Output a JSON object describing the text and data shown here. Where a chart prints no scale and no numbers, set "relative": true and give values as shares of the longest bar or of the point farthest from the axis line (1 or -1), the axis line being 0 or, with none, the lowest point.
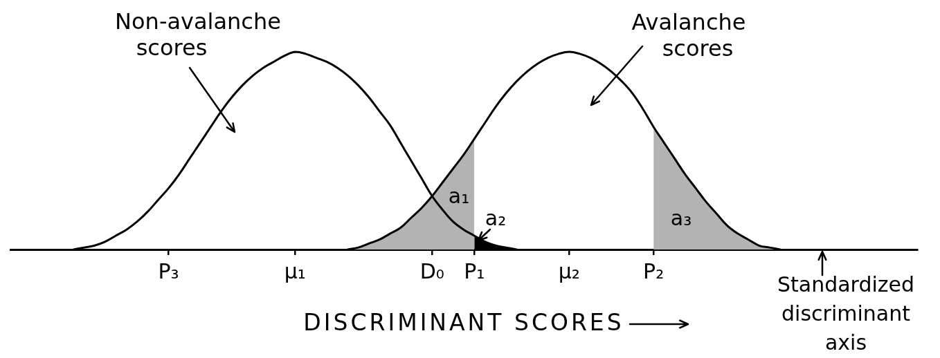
{
  "chart_data": {
    "type": "line",
    "relative": true,
    "xlabel": "DISCRIMINANT SCORES",
    "categories": [
      null,
      null,
      null,
      null,
      null,
      null,
      null,
      null,
      null,
      null,
      null,
      null,
      null,
      null,
      null,
      "P₃",
      null,
      null,
      null,
      null,
      null,
      null,
      null,
      null,
      null,
      null,
      null,
      "μ₁",
      null,
      null,
      null,
      null,
      null,
      null,
      null,
      null,
      null,
      null,
      null,
      null,
      "D₀",
      null,
      null,
      null,
      "P₁",
      null,
      null,
      null,
      null,
      null,
      null,
      null,
      null,
      "μ₂",
      null,
      null,
      null,
      null,
      null,
      null,
      null,
      "P₂",
      null,
      null,
      null,
      null,
      null,
      null,
      null,
      null,
      null,
      null,
      null,
      null,
      null,
      null,
      null,
      null,
      null,
      null,
      null,
      null,
      null,
      null,
      null,
      null,
      null
    ],
    "series": [
      {
        "name": "Non-avalanche scores",
        "color": "#000000",
        "values": [
          null,
          null,
          null,
          null,
          null,
          null,
          0,
          0.01,
          0.02,
          0.04,
          0.07,
          0.1,
          0.14,
          0.19,
          0.25,
          0.31,
          0.38,
          0.46,
          0.54,
          0.62,
          0.7,
          0.77,
          0.83,
          0.88,
          0.92,
          0.95,
          0.98,
          1,
          0.99,
          0.97,
          0.95,
          0.92,
          0.88,
          0.83,
          0.77,
          0.7,
          0.63,
          0.54,
          0.45,
          0.36,
          0.27,
          0.2,
          0.14,
          0.1,
          0.07,
          0.04,
          0.02,
          0.01,
          0,
          null,
          null,
          null,
          null,
          null,
          null,
          null,
          null,
          null,
          null,
          null,
          null,
          null,
          null,
          null,
          null,
          null,
          null,
          null,
          null,
          null,
          null,
          null,
          null,
          null,
          null,
          null,
          null,
          null,
          null,
          null,
          null,
          null,
          null,
          null,
          null,
          null,
          null
        ]
      },
      {
        "name": "Avalanche scores",
        "color": "#000000",
        "values": [
          null,
          null,
          null,
          null,
          null,
          null,
          null,
          null,
          null,
          null,
          null,
          null,
          null,
          null,
          null,
          null,
          null,
          null,
          null,
          null,
          null,
          null,
          null,
          null,
          null,
          null,
          null,
          null,
          null,
          null,
          null,
          null,
          0,
          0.01,
          0.03,
          0.05,
          0.08,
          0.11,
          0.16,
          0.21,
          0.27,
          0.34,
          0.41,
          0.48,
          0.56,
          0.64,
          0.72,
          0.79,
          0.85,
          0.9,
          0.94,
          0.97,
          0.99,
          1,
          0.99,
          0.97,
          0.94,
          0.9,
          0.85,
          0.79,
          0.71,
          0.62,
          0.54,
          0.46,
          0.38,
          0.31,
          0.24,
          0.18,
          0.12,
          0.08,
          0.05,
          0.02,
          0.01,
          0,
          null,
          null,
          null,
          null,
          null,
          null,
          null,
          null,
          null,
          null,
          null,
          null,
          null
        ]
      },
      {
        "name": "a₁",
        "type": "area",
        "color": "#b3b3b3",
        "values": [
          null,
          null,
          null,
          null,
          null,
          null,
          null,
          null,
          null,
          null,
          null,
          null,
          null,
          null,
          null,
          null,
          null,
          null,
          null,
          null,
          null,
          null,
          null,
          null,
          null,
          null,
          null,
          null,
          null,
          null,
          null,
          null,
          0,
          0.01,
          0.03,
          0.05,
          0.08,
          0.11,
          0.16,
          0.21,
          0.27,
          0.34,
          0.41,
          0.48,
          0.56,
          null,
          null,
          null,
          null,
          null,
          null,
          null,
          null,
          null,
          null,
          null,
          null,
          null,
          null,
          null,
          null,
          null,
          null,
          null,
          null,
          null,
          null,
          null,
          null,
          null,
          null,
          null,
          null,
          null,
          null,
          null,
          null,
          null,
          null,
          null,
          null,
          null,
          null,
          null,
          null,
          null,
          null
        ]
      },
      {
        "name": "a₂",
        "type": "area",
        "color": "#000000",
        "values": [
          null,
          null,
          null,
          null,
          null,
          null,
          null,
          null,
          null,
          null,
          null,
          null,
          null,
          null,
          null,
          null,
          null,
          null,
          null,
          null,
          null,
          null,
          null,
          null,
          null,
          null,
          null,
          null,
          null,
          null,
          null,
          null,
          null,
          null,
          null,
          null,
          null,
          null,
          null,
          null,
          null,
          null,
          null,
          null,
          0.07,
          0.04,
          0.02,
          0.01,
          0,
          null,
          null,
          null,
          null,
          null,
          null,
          null,
          null,
          null,
          null,
          null,
          null,
          null,
          null,
          null,
          null,
          null,
          null,
          null,
          null,
          null,
          null,
          null,
          null,
          null,
          null,
          null,
          null,
          null,
          null,
          null,
          null,
          null,
          null,
          null,
          null,
          null,
          null
        ]
      },
      {
        "name": "a₃",
        "type": "area",
        "color": "#b3b3b3",
        "values": [
          null,
          null,
          null,
          null,
          null,
          null,
          null,
          null,
          null,
          null,
          null,
          null,
          null,
          null,
          null,
          null,
          null,
          null,
          null,
          null,
          null,
          null,
          null,
          null,
          null,
          null,
          null,
          null,
          null,
          null,
          null,
          null,
          null,
          null,
          null,
          null,
          null,
          null,
          null,
          null,
          null,
          null,
          null,
          null,
          null,
          null,
          null,
          null,
          null,
          null,
          null,
          null,
          null,
          null,
          null,
          null,
          null,
          null,
          null,
          null,
          null,
          0.62,
          0.54,
          0.46,
          0.38,
          0.31,
          0.24,
          0.18,
          0.12,
          0.08,
          0.05,
          0.02,
          0.01,
          0,
          null,
          null,
          null,
          null,
          null,
          null,
          null,
          null,
          null,
          null,
          null,
          null,
          null
        ]
      }
    ],
    "annotations": [
      "Standardized discriminant axis"
    ]
  }
}
